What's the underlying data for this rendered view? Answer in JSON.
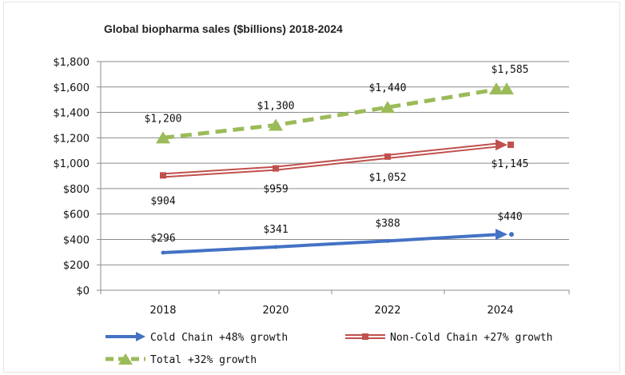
{
  "chart_data": {
    "type": "line",
    "title": "Global biopharma sales  ($billions) 2018-2024",
    "categories": [
      "2018",
      "2020",
      "2022",
      "2024"
    ],
    "ylim": [
      0,
      1800
    ],
    "yticks": [
      "$0",
      "$200",
      "$400",
      "$600",
      "$800",
      "$1,000",
      "$1,200",
      "$1,400",
      "$1,600",
      "$1,800"
    ],
    "xlabel": "",
    "ylabel": "",
    "grid": true,
    "legend_position": "bottom",
    "series": [
      {
        "name": "Cold Chain +48% growth",
        "color": "#4472C4",
        "style": "solid",
        "values": [
          296,
          341,
          388,
          440
        ],
        "labels": [
          "$296",
          "$341",
          "$388",
          "$440"
        ]
      },
      {
        "name": "Non-Cold Chain +27% growth",
        "color": "#C0504D",
        "style": "double",
        "values": [
          904,
          959,
          1052,
          1145
        ],
        "labels": [
          "$904",
          "$959",
          "$1,052",
          "$1,145"
        ]
      },
      {
        "name": "Total +32% growth",
        "color": "#9BBB59",
        "style": "dashed",
        "values": [
          1200,
          1300,
          1440,
          1585
        ],
        "labels": [
          "$1,200",
          "$1,300",
          "$1,440",
          "$1,585"
        ]
      }
    ]
  }
}
